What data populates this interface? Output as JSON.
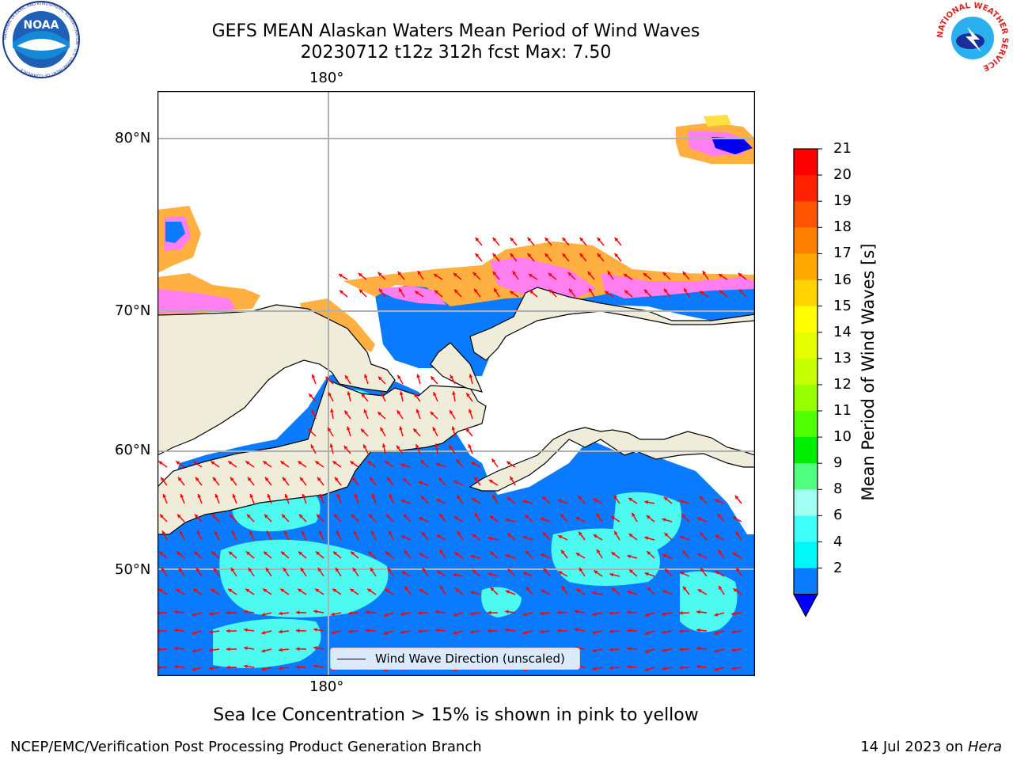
{
  "header": {
    "title_line1": "GEFS MEAN Alaskan Waters Mean Period of Wind Waves",
    "title_line2": "20230712 t12z 312h fcst   Max: 7.50"
  },
  "logos": {
    "left": "NOAA",
    "left_ring": "NATIONAL OCEANIC AND ATMOSPHERIC ADMINISTRATION · U.S. DEPARTMENT OF COMMERCE",
    "right_ring": "NATIONAL WEATHER SERVICE"
  },
  "map": {
    "lon_top": "180°",
    "lon_bottom": "180°",
    "lat_labels": [
      "80°N",
      "70°N",
      "60°N",
      "50°N"
    ],
    "legend_label": "Wind Wave Direction (unscaled)",
    "colors": {
      "land": "#efedda",
      "ocean_low": "#0a7bff",
      "ocean_mid": "#4cfaf0",
      "deep": "#0000f0",
      "ice_pink": "#ff7ff0",
      "ice_orange": "#ffb040",
      "ice_yellow": "#ffe040",
      "arrow": "#ff0000",
      "grid": "#b0b0b0"
    }
  },
  "colorbar": {
    "label": "Mean Period of Wind Waves [s]",
    "ticks": [
      "21",
      "20",
      "19",
      "18",
      "17",
      "16",
      "15",
      "14",
      "13",
      "12",
      "11",
      "10",
      "9",
      "8",
      "6",
      "4",
      "2"
    ],
    "segment_colors": [
      "#ff0000",
      "#ff2200",
      "#ff5500",
      "#ff8000",
      "#ffa800",
      "#ffd400",
      "#ffff00",
      "#e6ff00",
      "#c8ff00",
      "#96ff00",
      "#50ff00",
      "#00ee00",
      "#50ff80",
      "#a0fff0",
      "#40fff8",
      "#00f8f8",
      "#0a7bff"
    ],
    "extend_color": "#0000ff"
  },
  "notes": {
    "ice": "Sea Ice Concentration > 15% is shown in pink to yellow"
  },
  "footer": {
    "left": "NCEP/EMC/Verification Post Processing Product Generation Branch",
    "date": "14 Jul 2023 on ",
    "machine": "Hera"
  }
}
